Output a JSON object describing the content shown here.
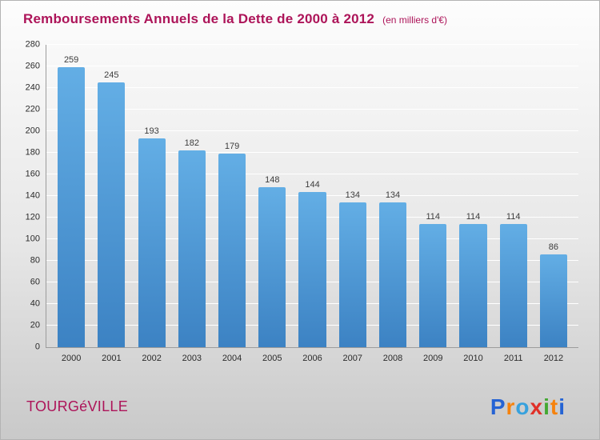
{
  "header": {
    "title": "Remboursements Annuels de la Dette de 2000 à 2012",
    "subtitle": "(en milliers d'€)"
  },
  "chart_data": {
    "type": "bar",
    "title": "Remboursements Annuels de la Dette de 2000 à 2012",
    "subtitle": "(en milliers d'€)",
    "categories": [
      "2000",
      "2001",
      "2002",
      "2003",
      "2004",
      "2005",
      "2006",
      "2007",
      "2008",
      "2009",
      "2010",
      "2011",
      "2012"
    ],
    "values": [
      259,
      245,
      193,
      182,
      179,
      148,
      144,
      134,
      134,
      114,
      114,
      114,
      86
    ],
    "xlabel": "",
    "ylabel": "",
    "ylim": [
      0,
      280
    ],
    "ytick_step": 20,
    "grid": true,
    "legend": false,
    "bar_gradient_top": "#63aee5",
    "bar_gradient_bottom": "#3c82c3",
    "value_label_color": "#3c3c3c",
    "tick_label_color": "#2b2b2b"
  },
  "footer": {
    "location": "TOURGéVILLE",
    "logo_letters": [
      {
        "char": "P",
        "color": "#2563d4"
      },
      {
        "char": "r",
        "color": "#f6820c"
      },
      {
        "char": "o",
        "color": "#37a1dd"
      },
      {
        "char": "x",
        "color": "#e03028"
      },
      {
        "char": "i",
        "color": "#43a832"
      },
      {
        "char": "t",
        "color": "#f6820c"
      },
      {
        "char": "i",
        "color": "#2563d4"
      }
    ]
  },
  "colors": {
    "title": "#ad1459",
    "subtitle": "#ad1459",
    "location": "#ad1459",
    "background_top": "#fdfdfd",
    "background_bottom": "#c9c9c9",
    "gridline": "#ffffff",
    "axis": "#9c9c9c"
  }
}
